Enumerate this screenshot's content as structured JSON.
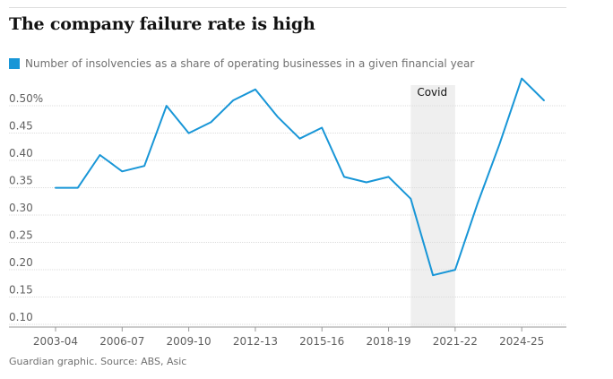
{
  "chart_data": {
    "type": "line",
    "title": "The company failure rate is high",
    "legend": "Number of insolvencies as a share of operating businesses in a given financial year",
    "source": "Guardian graphic. Source: ABS, Asic",
    "x": [
      "2003-04",
      "2004-05",
      "2005-06",
      "2006-07",
      "2007-08",
      "2008-09",
      "2009-10",
      "2010-11",
      "2011-12",
      "2012-13",
      "2013-14",
      "2014-15",
      "2015-16",
      "2016-17",
      "2017-18",
      "2018-19",
      "2019-20",
      "2020-21",
      "2021-22",
      "2022-23",
      "2023-24",
      "2024-25",
      "2025-26"
    ],
    "x_tick_labels": [
      "2003-04",
      "2006-07",
      "2009-10",
      "2012-13",
      "2015-16",
      "2018-19",
      "2021-22",
      "2024-25"
    ],
    "series": [
      {
        "values": [
          0.34,
          0.34,
          0.4,
          0.37,
          0.38,
          0.49,
          0.44,
          0.46,
          0.5,
          0.52,
          0.47,
          0.43,
          0.45,
          0.36,
          0.35,
          0.36,
          0.32,
          0.18,
          0.19,
          0.31,
          0.42,
          0.54,
          0.5
        ],
        "color": "#1896d7"
      }
    ],
    "ylim": [
      0.1,
      0.55
    ],
    "y_ticks": [
      "0.50%",
      "0.45",
      "0.40",
      "0.35",
      "0.30",
      "0.25",
      "0.20",
      "0.15",
      "0.10"
    ],
    "y_tick_values": [
      0.5,
      0.45,
      0.4,
      0.35,
      0.3,
      0.25,
      0.2,
      0.15,
      0.1
    ],
    "annotation": {
      "label": "Covid",
      "x_start": 16,
      "x_end": 18,
      "color": "#efefef"
    },
    "grid": true,
    "legend_position": "top-left"
  }
}
